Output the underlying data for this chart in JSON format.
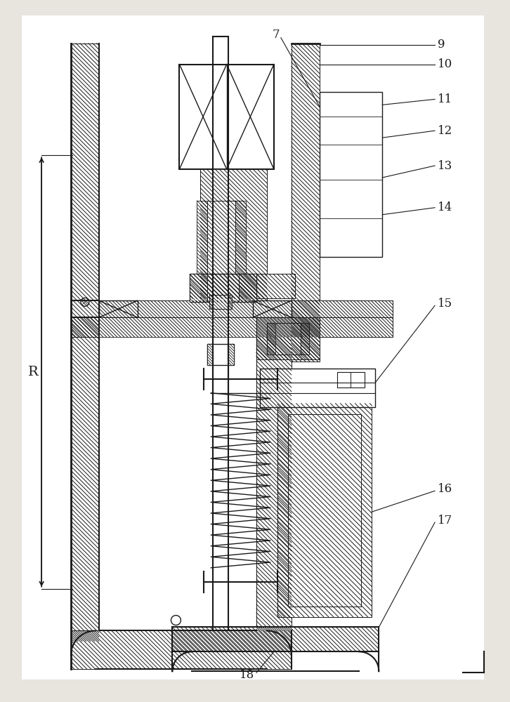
{
  "bg_color": "#e8e4de",
  "line_color": "#1a1a1a",
  "figsize": [
    7.26,
    10.0
  ],
  "dpi": 100,
  "white": "#ffffff"
}
